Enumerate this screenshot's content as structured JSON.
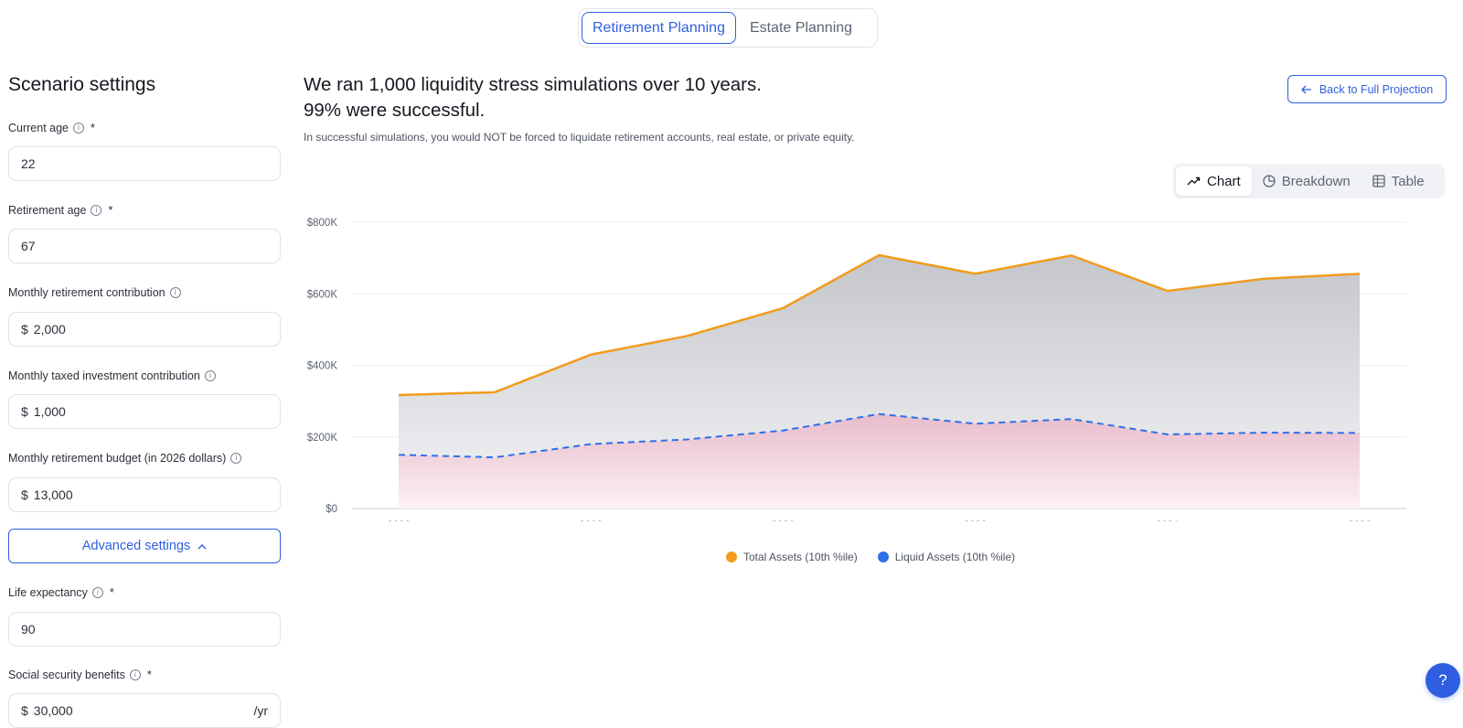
{
  "top_tabs": [
    {
      "label": "Retirement Planning",
      "active": true
    },
    {
      "label": "Estate Planning",
      "active": false
    }
  ],
  "settings": {
    "title": "Scenario settings",
    "current_age": {
      "label": "Current age",
      "value": "22",
      "required": "*"
    },
    "retirement_age": {
      "label": "Retirement age",
      "value": "67",
      "required": "*"
    },
    "monthly_retirement_contribution": {
      "label": "Monthly retirement contribution",
      "prefix": "$",
      "value": "2,000"
    },
    "monthly_taxed_contribution": {
      "label": "Monthly taxed investment contribution",
      "prefix": "$",
      "value": "1,000"
    },
    "monthly_budget": {
      "label": "Monthly retirement budget (in 2026 dollars)",
      "prefix": "$",
      "value": "13,000"
    },
    "advanced_label": "Advanced settings",
    "life_expectancy": {
      "label": "Life expectancy",
      "value": "90",
      "required": "*"
    },
    "social_security": {
      "label": "Social security benefits",
      "prefix": "$",
      "value": "30,000",
      "suffix": "/yr",
      "required": "*"
    }
  },
  "main": {
    "headline_line1": "We ran 1,000 liquidity stress simulations over 10 years.",
    "headline_line2": "99% were successful.",
    "subline": "In successful simulations, you would NOT be forced to liquidate retirement accounts, real estate, or private equity.",
    "back_label": "Back to Full Projection",
    "view_tabs": [
      {
        "label": "Chart",
        "active": true,
        "icon": "trend-icon"
      },
      {
        "label": "Breakdown",
        "active": false,
        "icon": "pie-icon"
      },
      {
        "label": "Table",
        "active": false,
        "icon": "table-icon"
      }
    ],
    "help_label": "?"
  },
  "chart_data": {
    "type": "line",
    "x": [
      2026,
      2027,
      2028,
      2029,
      2030,
      2031,
      2032,
      2033,
      2034,
      2035,
      2036
    ],
    "x_ticks": [
      "2026",
      "2028",
      "2030",
      "2032",
      "2034",
      "2036"
    ],
    "y_ticks": [
      "$0",
      "$200K",
      "$400K",
      "$600K",
      "$800K"
    ],
    "ylim": [
      0,
      800000
    ],
    "xlim": [
      2026,
      2036
    ],
    "grid": true,
    "legend_position": "bottom-center",
    "series": [
      {
        "name": "Total Assets (10th %ile)",
        "color": "#f29b1d",
        "style": "solid",
        "values": [
          317000,
          325000,
          430000,
          482000,
          560000,
          708000,
          656000,
          707000,
          608000,
          642000,
          656000
        ]
      },
      {
        "name": "Liquid Assets (10th %ile)",
        "color": "#2f6fe8",
        "style": "dashed",
        "values": [
          150000,
          143000,
          180000,
          193000,
          218000,
          264000,
          237000,
          250000,
          207000,
          212000,
          211000
        ]
      }
    ]
  }
}
